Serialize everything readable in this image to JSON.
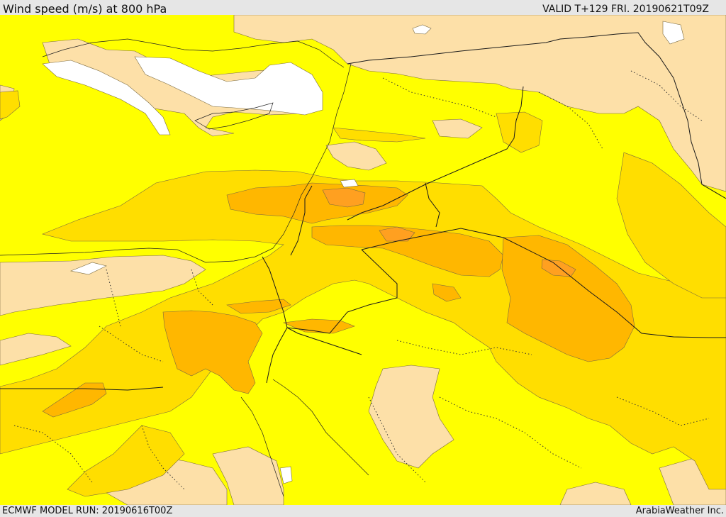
{
  "header": {
    "title": "Wind speed (m/s) at 800 hPa",
    "valid": "VALID T+129 FRI. 20190621T09Z"
  },
  "footer": {
    "model_run": "ECMWF MODEL RUN: 20190616T00Z",
    "credit": "ArabiaWeather Inc."
  },
  "colors": {
    "background": "#ffff00",
    "calm": "#ffffff",
    "light": "#fde0a8",
    "moderate": "#ffde00",
    "strong": "#ffb700",
    "stronger": "#ffa020",
    "frame": "#e6e6e6"
  }
}
